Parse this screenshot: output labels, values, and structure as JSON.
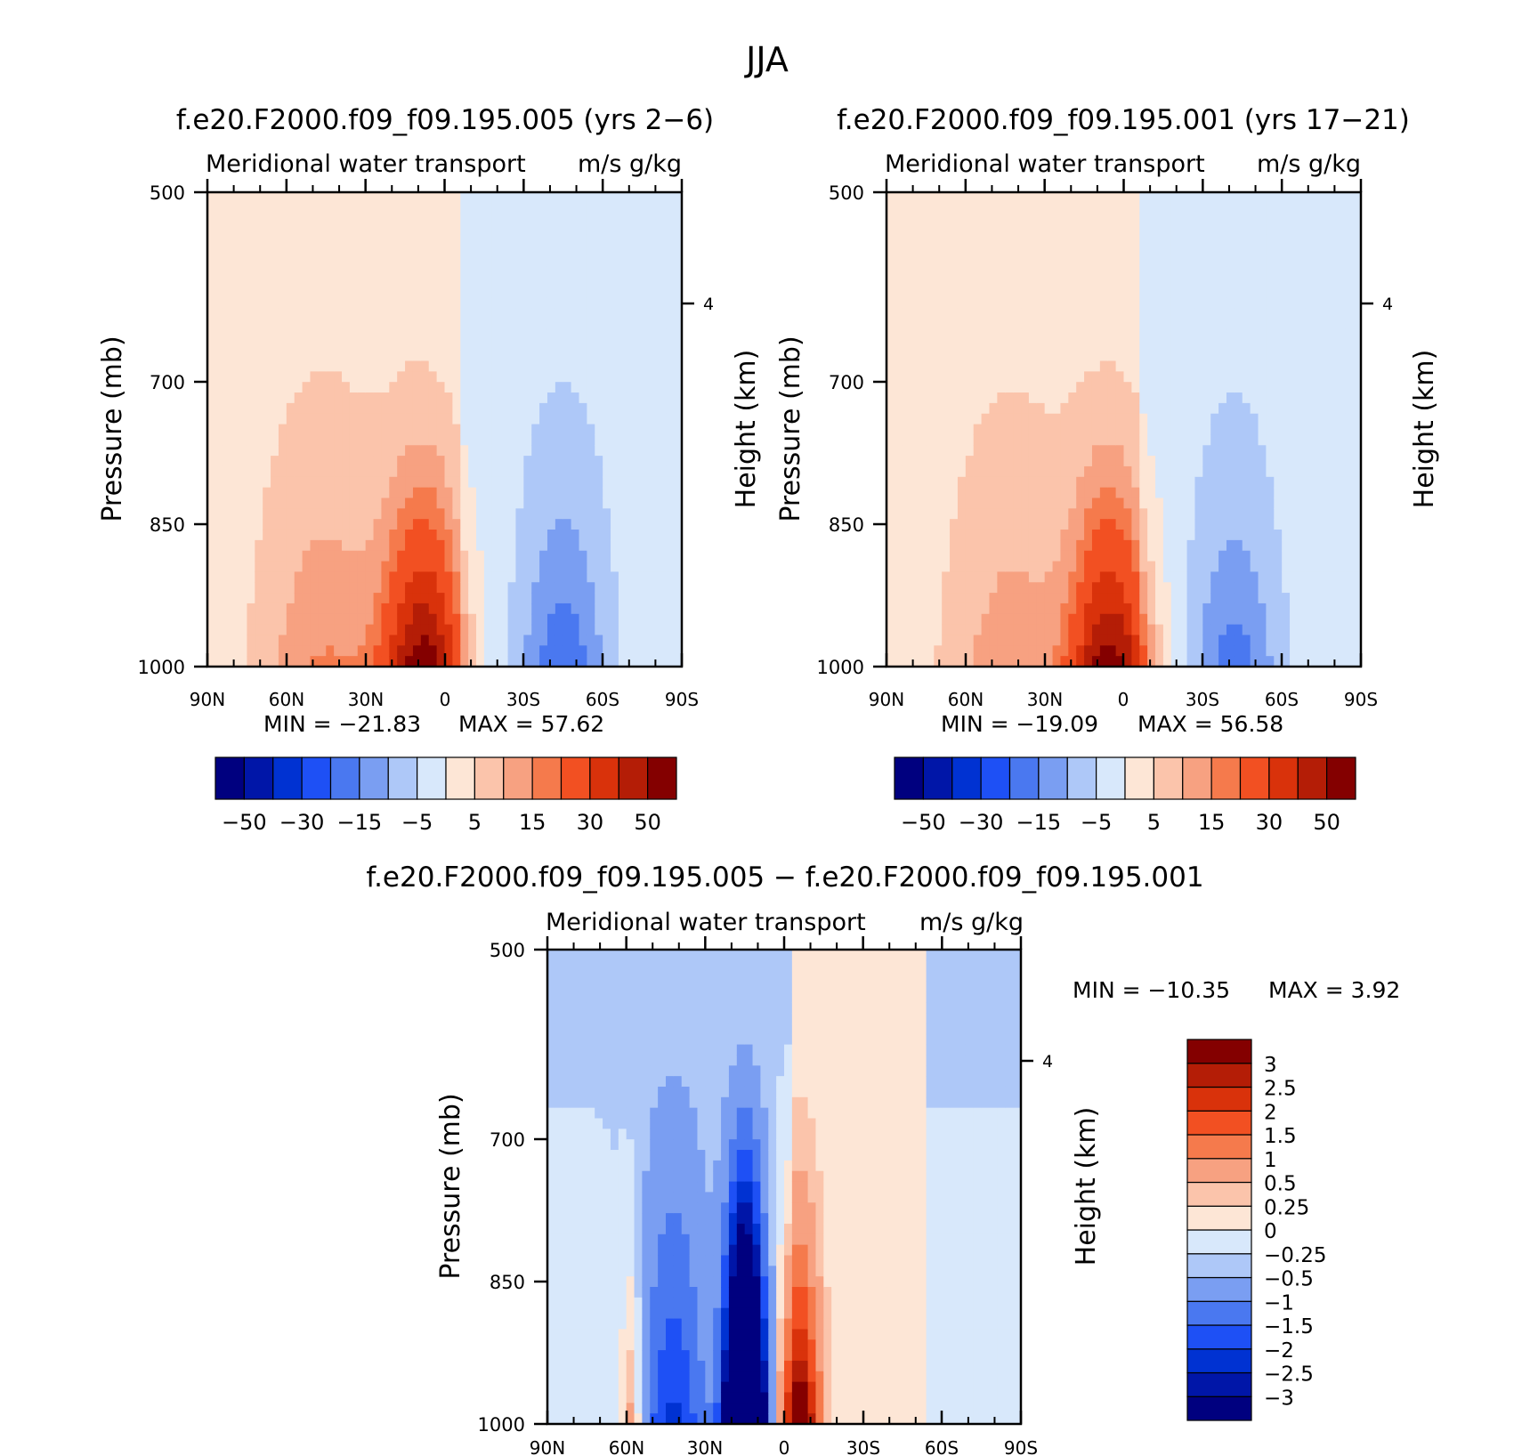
{
  "chart_data": {
    "figure_title": "JJA",
    "panels": [
      {
        "id": "panel-left",
        "type": "heatmap",
        "title": "f.e20.F2000.f09_f09.195.005 (yrs 2−6)",
        "subtitle_left": "Meridional water transport",
        "subtitle_right": "m/s g/kg",
        "ylabel": "Pressure (mb)",
        "ylabel_right": "Height (km)",
        "yticks": [
          "500",
          "700",
          "850",
          "1000"
        ],
        "yticks_right": [
          "4"
        ],
        "xticks": [
          "90N",
          "60N",
          "30N",
          "0",
          "30S",
          "60S",
          "90S"
        ],
        "xlim": [
          90,
          -90
        ],
        "ylim": [
          1000,
          500
        ],
        "min_label": "MIN = −21.83",
        "max_label": "MAX = 57.62",
        "min": -21.83,
        "max": 57.62,
        "field": {
          "shape": "jet",
          "core_lat": 8,
          "core_peak": 57,
          "south_blue_lat": -45,
          "south_blue_peak": -18,
          "north_lat": 45,
          "north_peak": 14,
          "upper_sign": "NH positive / SH negative"
        }
      },
      {
        "id": "panel-right",
        "type": "heatmap",
        "title": "f.e20.F2000.f09_f09.195.001 (yrs 17−21)",
        "subtitle_left": "Meridional water transport",
        "subtitle_right": "m/s g/kg",
        "ylabel": "Pressure (mb)",
        "ylabel_right": "Height (km)",
        "yticks": [
          "500",
          "700",
          "850",
          "1000"
        ],
        "yticks_right": [
          "4"
        ],
        "xticks": [
          "90N",
          "60N",
          "30N",
          "0",
          "30S",
          "60S",
          "90S"
        ],
        "xlim": [
          90,
          -90
        ],
        "ylim": [
          1000,
          500
        ],
        "min_label": "MIN = −19.09",
        "max_label": "MAX = 56.58",
        "min": -19.09,
        "max": 56.58,
        "field": {
          "shape": "jet",
          "core_lat": 5,
          "core_peak": 56,
          "south_blue_lat": -42,
          "south_blue_peak": -16,
          "north_lat": 42,
          "north_peak": 12,
          "upper_sign": "NH positive / SH negative"
        }
      },
      {
        "id": "panel-diff",
        "type": "heatmap",
        "title": "f.e20.F2000.f09_f09.195.005 − f.e20.F2000.f09_f09.195.001",
        "subtitle_left": "Meridional water transport",
        "subtitle_right": "m/s g/kg",
        "ylabel": "Pressure (mb)",
        "ylabel_right": "Height (km)",
        "yticks": [
          "500",
          "700",
          "850",
          "1000"
        ],
        "yticks_right": [
          "4"
        ],
        "xticks": [
          "90N",
          "60N",
          "30N",
          "0",
          "30S",
          "60S",
          "90S"
        ],
        "xlim": [
          90,
          -90
        ],
        "ylim": [
          1000,
          500
        ],
        "min_label": "MIN = −10.35",
        "max_label": "MAX = 3.92",
        "min": -10.35,
        "max": 3.92,
        "field": {
          "shape": "difference",
          "neg_core_lat": 15,
          "neg_core_peak": -10.35,
          "pos_core_lat": -6,
          "pos_core_peak": 3.92
        }
      }
    ],
    "colorbars": [
      {
        "id": "colorbar-top",
        "orientation": "horizontal",
        "levels": [
          -50,
          -40,
          -30,
          -20,
          -15,
          -10,
          -5,
          0,
          5,
          10,
          15,
          20,
          30,
          40,
          50
        ],
        "labels": [
          "−50",
          "−30",
          "−15",
          "−5",
          "5",
          "15",
          "30",
          "50"
        ],
        "colors": [
          "#00007f",
          "#0016a8",
          "#0032d2",
          "#1e50f5",
          "#4a78f0",
          "#7a9ef2",
          "#aec8f8",
          "#d8e8fb",
          "#fde6d6",
          "#fbc4ab",
          "#f7a181",
          "#f57a4c",
          "#f25022",
          "#d9320b",
          "#b41d06",
          "#840000"
        ]
      },
      {
        "id": "colorbar-diff",
        "orientation": "vertical",
        "levels": [
          -3,
          -2.5,
          -2,
          -1.5,
          -1,
          -0.5,
          -0.25,
          0,
          0.25,
          0.5,
          1,
          1.5,
          2,
          2.5,
          3
        ],
        "labels": [
          "−3",
          "−2.5",
          "−2",
          "−1.5",
          "−1",
          "−0.5",
          "−0.25",
          "0",
          "0.25",
          "0.5",
          "1",
          "1.5",
          "2",
          "2.5",
          "3"
        ],
        "colors": [
          "#00007f",
          "#0016a8",
          "#0032d2",
          "#1e50f5",
          "#4a78f0",
          "#7a9ef2",
          "#aec8f8",
          "#d8e8fb",
          "#fde6d6",
          "#fbc4ab",
          "#f7a181",
          "#f57a4c",
          "#f25022",
          "#d9320b",
          "#b41d06",
          "#840000"
        ]
      }
    ]
  }
}
